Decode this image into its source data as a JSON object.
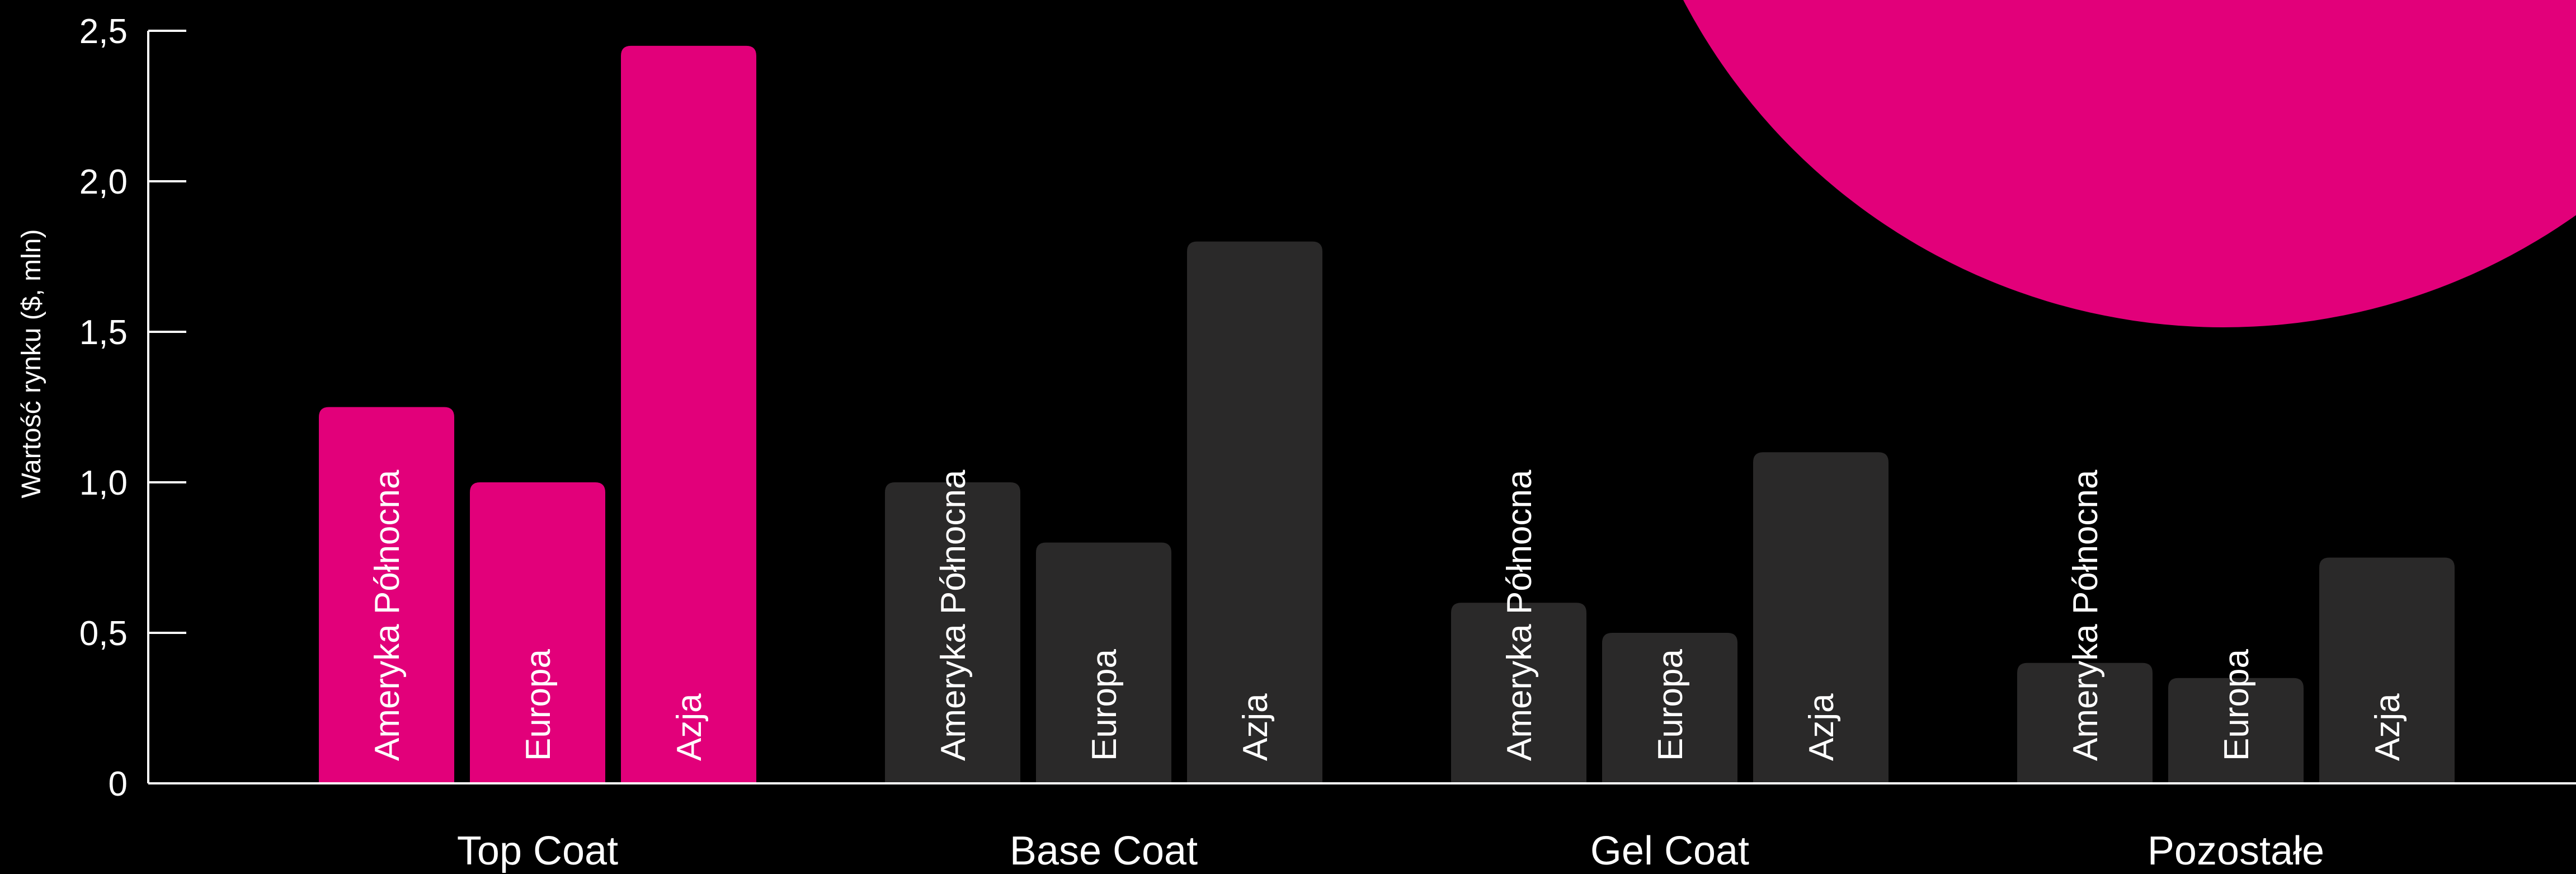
{
  "chart_data": {
    "type": "bar",
    "ylabel": "Wartość rynku ($, mln)",
    "ylim": [
      0,
      2.5
    ],
    "yticks": [
      {
        "value": 0,
        "label": "0"
      },
      {
        "value": 0.5,
        "label": "0,5"
      },
      {
        "value": 1.0,
        "label": "1,0"
      },
      {
        "value": 1.5,
        "label": "1,5"
      },
      {
        "value": 2.0,
        "label": "2,0"
      },
      {
        "value": 2.5,
        "label": "2,5"
      }
    ],
    "categories": [
      "Top Coat",
      "Base Coat",
      "Gel Coat",
      "Pozostałe"
    ],
    "series": [
      {
        "name": "Ameryka Północna",
        "values": [
          1.25,
          1.0,
          0.6,
          0.4
        ]
      },
      {
        "name": "Europa",
        "values": [
          1.0,
          0.8,
          0.5,
          0.35
        ]
      },
      {
        "name": "Azja",
        "values": [
          2.45,
          1.8,
          1.1,
          0.75
        ]
      }
    ],
    "highlight_category": "Top Coat",
    "grid": false,
    "legend": "none"
  },
  "colors": {
    "background": "#000000",
    "highlight": "#e2007a",
    "bar": "#2a2929",
    "axis": "#ffffff",
    "text": "#ffffff"
  }
}
